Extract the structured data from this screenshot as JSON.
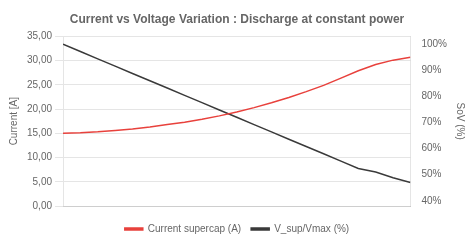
{
  "chart_data": {
    "type": "line",
    "title": "Current vs Voltage Variation : Discharge at constant power",
    "y_label": "Current [A]",
    "y2_label": "SoV (%)",
    "x": [
      0,
      0.05,
      0.1,
      0.15,
      0.2,
      0.25,
      0.3,
      0.35,
      0.4,
      0.45,
      0.5,
      0.55,
      0.6,
      0.65,
      0.7,
      0.75,
      0.8,
      0.85,
      0.9,
      0.95,
      1.0
    ],
    "series": [
      {
        "name": "Current supercap (A)",
        "color": "#e8413c",
        "axis": "y",
        "values": [
          15.0,
          15.1,
          15.3,
          15.6,
          15.9,
          16.3,
          16.8,
          17.3,
          17.9,
          18.6,
          19.4,
          20.3,
          21.3,
          22.4,
          23.6,
          24.9,
          26.4,
          27.9,
          29.2,
          30.1,
          30.7
        ]
      },
      {
        "name": "V_sup/Vmax (%)",
        "color": "#3a3a3a",
        "axis": "y2",
        "values": [
          100.0,
          97.2,
          94.4,
          91.6,
          88.8,
          86.0,
          83.2,
          80.4,
          77.6,
          74.8,
          72.0,
          69.2,
          66.4,
          63.6,
          60.8,
          58.0,
          55.2,
          52.4,
          51.0,
          48.8,
          47.0
        ]
      }
    ],
    "xlim": [
      0,
      1
    ],
    "ylim": [
      0,
      35
    ],
    "yticks": [
      {
        "value": 0,
        "label": "0,00"
      },
      {
        "value": 5,
        "label": "5,00"
      },
      {
        "value": 10,
        "label": "10,00"
      },
      {
        "value": 15,
        "label": "15,00"
      },
      {
        "value": 20,
        "label": "20,00"
      },
      {
        "value": 25,
        "label": "25,00"
      },
      {
        "value": 30,
        "label": "30,00"
      },
      {
        "value": 35,
        "label": "35,00"
      }
    ],
    "y2lim": [
      38,
      103
    ],
    "y2ticks": [
      {
        "value": 40,
        "label": "40%"
      },
      {
        "value": 50,
        "label": "50%"
      },
      {
        "value": 60,
        "label": "60%"
      },
      {
        "value": 70,
        "label": "70%"
      },
      {
        "value": 80,
        "label": "80%"
      },
      {
        "value": 90,
        "label": "90%"
      },
      {
        "value": 100,
        "label": "100%"
      }
    ],
    "grid": true,
    "legend": "bottom",
    "tick_labels": "y"
  }
}
